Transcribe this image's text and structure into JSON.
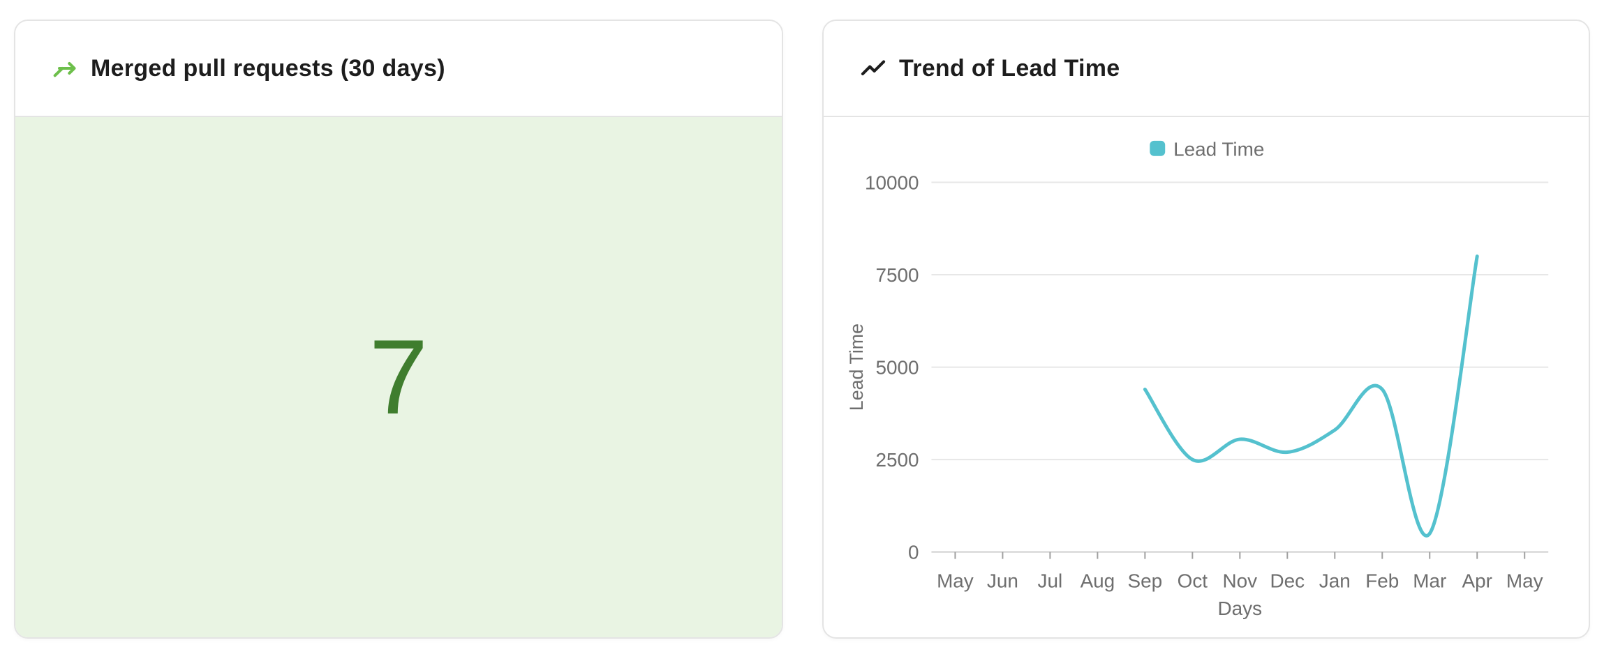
{
  "merged_pr_card": {
    "title": "Merged pull requests (30 days)",
    "value": "7",
    "icon": "merge-arrow-icon"
  },
  "lead_time_card": {
    "title": "Trend of Lead Time",
    "icon": "trend-line-icon"
  },
  "colors": {
    "accent_green": "#6dbf4b",
    "value_green": "#3f7d2e",
    "green_bg": "#e9f4e3",
    "teal": "#54c1ce",
    "title_text": "#1d1d1d",
    "axis_text": "#6e6e6e",
    "grid_line": "#e7e7e7",
    "axis_line": "#cfcfcf",
    "tick_mark": "#a0a0a0",
    "card_border": "#e4e4e4"
  },
  "chart_data": {
    "type": "line",
    "title": "Trend of Lead Time",
    "xlabel": "Days",
    "ylabel": "Lead Time",
    "legend": [
      "Lead Time"
    ],
    "legend_position": "top",
    "grid": true,
    "smooth": true,
    "categories": [
      "May",
      "Jun",
      "Jul",
      "Aug",
      "Sep",
      "Oct",
      "Nov",
      "Dec",
      "Jan",
      "Feb",
      "Mar",
      "Apr",
      "May"
    ],
    "series": [
      {
        "name": "Lead Time",
        "values": [
          null,
          null,
          null,
          null,
          4400,
          2500,
          3050,
          2700,
          3300,
          4400,
          500,
          8000,
          null
        ]
      }
    ],
    "ylim": [
      0,
      10000
    ],
    "yticks": [
      0,
      2500,
      5000,
      7500,
      10000
    ]
  }
}
